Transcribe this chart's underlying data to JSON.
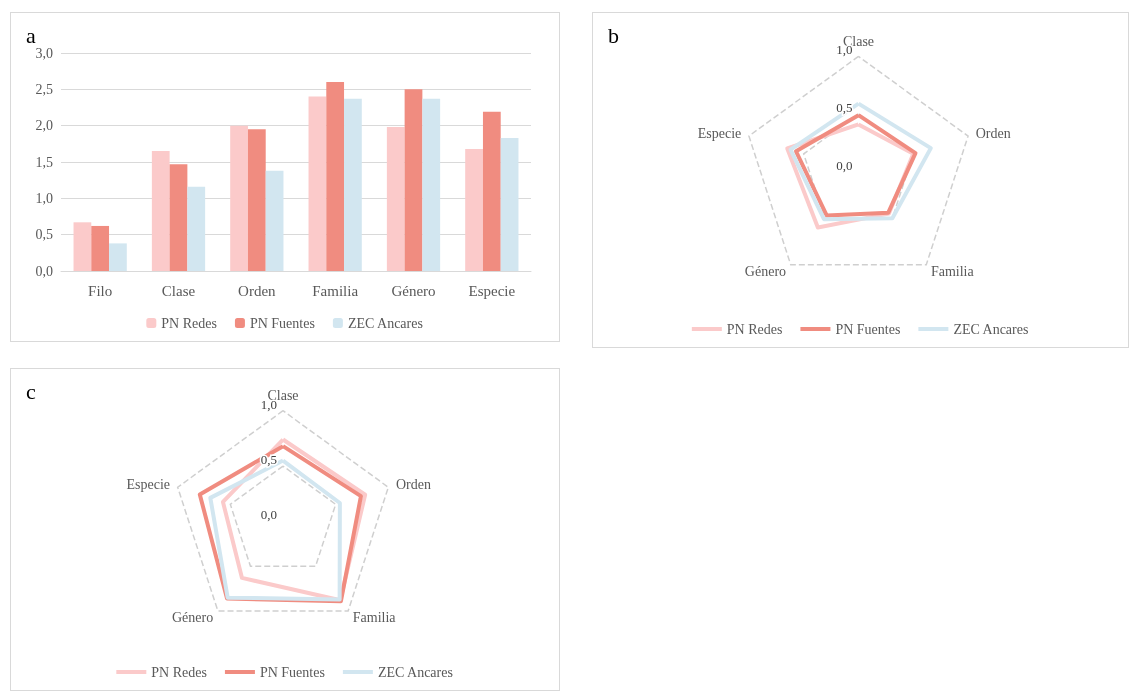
{
  "chart_data": [
    {
      "type": "bar",
      "title": "a",
      "categories": [
        "Filo",
        "Clase",
        "Orden",
        "Familia",
        "Género",
        "Especie"
      ],
      "series": [
        {
          "name": "PN Redes",
          "color": "#fbcaca",
          "values": [
            0.67,
            1.65,
            2.0,
            2.4,
            1.98,
            1.68
          ]
        },
        {
          "name": "PN Fuentes",
          "color": "#f08c80",
          "values": [
            0.62,
            1.47,
            1.95,
            2.6,
            2.5,
            2.19
          ]
        },
        {
          "name": "ZEC Ancares",
          "color": "#d2e6f0",
          "values": [
            0.38,
            1.16,
            1.38,
            2.37,
            2.37,
            1.83
          ]
        }
      ],
      "ylim": [
        0,
        3
      ],
      "yticks": [
        {
          "value": 0,
          "label": "0,0"
        },
        {
          "value": 0.5,
          "label": "0,5"
        },
        {
          "value": 1,
          "label": "1,0"
        },
        {
          "value": 1.5,
          "label": "1,5"
        },
        {
          "value": 2,
          "label": "2,0"
        },
        {
          "value": 2.5,
          "label": "2,5"
        },
        {
          "value": 3,
          "label": "3,0"
        }
      ],
      "grid": "y",
      "legend": "bottom"
    },
    {
      "type": "radar",
      "title": "b",
      "categories": [
        "Clase",
        "Orden",
        "Familia",
        "Género",
        "Especie"
      ],
      "series": [
        {
          "name": "PN Redes",
          "color": "#fbcaca",
          "values": [
            0.41,
            0.5,
            0.45,
            0.6,
            0.65
          ]
        },
        {
          "name": "PN Fuentes",
          "color": "#f08c80",
          "values": [
            0.49,
            0.52,
            0.44,
            0.47,
            0.57
          ]
        },
        {
          "name": "ZEC Ancares",
          "color": "#d2e6f0",
          "values": [
            0.59,
            0.66,
            0.5,
            0.51,
            0.62
          ]
        }
      ],
      "ylim": [
        0,
        1
      ],
      "yticks": [
        {
          "value": 0,
          "label": "0,0"
        },
        {
          "value": 0.5,
          "label": "0,5"
        },
        {
          "value": 1,
          "label": "1,0"
        }
      ],
      "legend": "bottom"
    },
    {
      "type": "radar",
      "title": "c",
      "categories": [
        "Clase",
        "Orden",
        "Familia",
        "Género",
        "Especie"
      ],
      "series": [
        {
          "name": "PN Redes",
          "color": "#fbcaca",
          "values": [
            0.74,
            0.78,
            0.88,
            0.63,
            0.57
          ]
        },
        {
          "name": "PN Fuentes",
          "color": "#f08c80",
          "values": [
            0.68,
            0.74,
            0.89,
            0.86,
            0.79
          ]
        },
        {
          "name": "ZEC Ancares",
          "color": "#d2e6f0",
          "values": [
            0.55,
            0.54,
            0.87,
            0.85,
            0.69
          ]
        }
      ],
      "ylim": [
        0,
        1
      ],
      "yticks": [
        {
          "value": 0,
          "label": "0,0"
        },
        {
          "value": 0.5,
          "label": "0,5"
        },
        {
          "value": 1,
          "label": "1,0"
        }
      ],
      "legend": "bottom"
    }
  ]
}
